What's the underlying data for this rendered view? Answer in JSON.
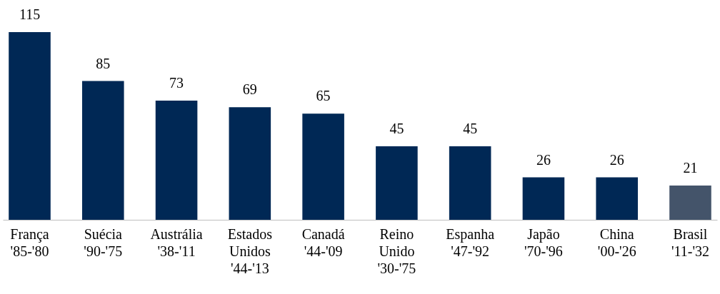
{
  "chart_data": {
    "type": "bar",
    "categories": [
      "França\n'85-'80",
      "Suécia\n'90-'75",
      "Austrália\n'38-'11",
      "Estados\nUnidos\n'44-'13",
      "Canadá\n'44-'09",
      "Reino\nUnido\n'30-'75",
      "Espanha\n'47-'92",
      "Japão\n'70-'96",
      "China\n'00-'26",
      "Brasil\n'11-'32"
    ],
    "values": [
      115,
      85,
      73,
      69,
      65,
      45,
      45,
      26,
      26,
      21
    ],
    "colors": [
      "#002855",
      "#002855",
      "#002855",
      "#002855",
      "#002855",
      "#002855",
      "#002855",
      "#002855",
      "#002855",
      "#44546a"
    ],
    "data_labels": true
  }
}
